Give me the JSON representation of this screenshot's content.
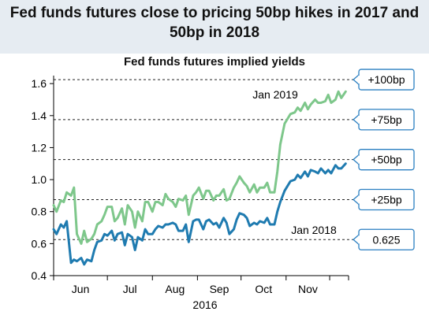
{
  "chart_data": {
    "type": "line",
    "title": "Fed funds futures close to pricing 50bp hikes in 2017 and 50bp in 2018",
    "subtitle": "Fed funds futures implied yields",
    "xlabel": "2016",
    "ylabel": "",
    "x_ticks": [
      "Jun",
      "Jul",
      "Aug",
      "Sep",
      "Oct",
      "Nov"
    ],
    "y_ticks": [
      "0.4",
      "0.6",
      "0.8",
      "1.0",
      "1.2",
      "1.4",
      "1.6"
    ],
    "ylim": [
      0.4,
      1.65
    ],
    "grid": false,
    "colors": {
      "jan2019": "#7ec78b",
      "jan2018": "#1f7bb0",
      "header": "#e6ecf2",
      "callout_border": "#2a7fc1"
    },
    "reference_lines": [
      {
        "value": 1.625,
        "label": "+100bp"
      },
      {
        "value": 1.375,
        "label": "+75bp"
      },
      {
        "value": 1.125,
        "label": "+50bp"
      },
      {
        "value": 0.875,
        "label": "+25bp"
      },
      {
        "value": 0.625,
        "label": "0.625"
      }
    ],
    "series": [
      {
        "name": "Jan 2019",
        "x": [
          "2016-05-25",
          "2016-05-27",
          "2016-05-30",
          "2016-06-01",
          "2016-06-03",
          "2016-06-06",
          "2016-06-08",
          "2016-06-10",
          "2016-06-13",
          "2016-06-15",
          "2016-06-17",
          "2016-06-20",
          "2016-06-22",
          "2016-06-24",
          "2016-06-27",
          "2016-06-29",
          "2016-07-01",
          "2016-07-04",
          "2016-07-06",
          "2016-07-08",
          "2016-07-11",
          "2016-07-13",
          "2016-07-15",
          "2016-07-18",
          "2016-07-20",
          "2016-07-22",
          "2016-07-25",
          "2016-07-27",
          "2016-07-29",
          "2016-08-01",
          "2016-08-03",
          "2016-08-05",
          "2016-08-08",
          "2016-08-10",
          "2016-08-12",
          "2016-08-15",
          "2016-08-17",
          "2016-08-19",
          "2016-08-22",
          "2016-08-24",
          "2016-08-26",
          "2016-08-29",
          "2016-08-31",
          "2016-09-02",
          "2016-09-05",
          "2016-09-07",
          "2016-09-09",
          "2016-09-12",
          "2016-09-14",
          "2016-09-16",
          "2016-09-19",
          "2016-09-21",
          "2016-09-23",
          "2016-09-26",
          "2016-09-28",
          "2016-09-30",
          "2016-10-03",
          "2016-10-05",
          "2016-10-07",
          "2016-10-10",
          "2016-10-12",
          "2016-10-14",
          "2016-10-17",
          "2016-10-19",
          "2016-10-21",
          "2016-10-24",
          "2016-10-26",
          "2016-10-28",
          "2016-10-31",
          "2016-11-02",
          "2016-11-04",
          "2016-11-07",
          "2016-11-09",
          "2016-11-11",
          "2016-11-14",
          "2016-11-16",
          "2016-11-18",
          "2016-11-21",
          "2016-11-23",
          "2016-11-25",
          "2016-11-28",
          "2016-11-30",
          "2016-12-02",
          "2016-12-05",
          "2016-12-07",
          "2016-12-09",
          "2016-12-12"
        ],
        "values": [
          0.84,
          0.8,
          0.87,
          0.86,
          0.92,
          0.9,
          0.95,
          0.66,
          0.6,
          0.68,
          0.61,
          0.63,
          0.66,
          0.72,
          0.74,
          0.78,
          0.83,
          0.83,
          0.74,
          0.76,
          0.82,
          0.72,
          0.84,
          0.8,
          0.7,
          0.8,
          0.74,
          0.86,
          0.86,
          0.8,
          0.86,
          0.86,
          0.84,
          0.91,
          0.88,
          0.86,
          0.83,
          0.88,
          0.87,
          0.9,
          0.78,
          0.9,
          0.92,
          0.95,
          0.88,
          0.93,
          0.93,
          0.87,
          0.9,
          0.9,
          0.94,
          0.87,
          0.88,
          0.95,
          0.98,
          1.02,
          0.98,
          0.96,
          0.92,
          0.97,
          0.92,
          0.95,
          0.95,
          0.98,
          0.92,
          0.92,
          1.05,
          1.22,
          1.35,
          1.38,
          1.41,
          1.42,
          1.45,
          1.43,
          1.48,
          1.44,
          1.47,
          1.5,
          1.48,
          1.48,
          1.49,
          1.53,
          1.48,
          1.5,
          1.55,
          1.51,
          1.55
        ]
      },
      {
        "name": "Jan 2018",
        "x": [
          "2016-05-25",
          "2016-05-27",
          "2016-05-30",
          "2016-06-01",
          "2016-06-03",
          "2016-06-06",
          "2016-06-08",
          "2016-06-10",
          "2016-06-13",
          "2016-06-15",
          "2016-06-17",
          "2016-06-20",
          "2016-06-22",
          "2016-06-24",
          "2016-06-27",
          "2016-06-29",
          "2016-07-01",
          "2016-07-04",
          "2016-07-06",
          "2016-07-08",
          "2016-07-11",
          "2016-07-13",
          "2016-07-15",
          "2016-07-18",
          "2016-07-20",
          "2016-07-22",
          "2016-07-25",
          "2016-07-27",
          "2016-07-29",
          "2016-08-01",
          "2016-08-03",
          "2016-08-05",
          "2016-08-08",
          "2016-08-10",
          "2016-08-12",
          "2016-08-15",
          "2016-08-17",
          "2016-08-19",
          "2016-08-22",
          "2016-08-24",
          "2016-08-26",
          "2016-08-29",
          "2016-08-31",
          "2016-09-02",
          "2016-09-05",
          "2016-09-07",
          "2016-09-09",
          "2016-09-12",
          "2016-09-14",
          "2016-09-16",
          "2016-09-19",
          "2016-09-21",
          "2016-09-23",
          "2016-09-26",
          "2016-09-28",
          "2016-09-30",
          "2016-10-03",
          "2016-10-05",
          "2016-10-07",
          "2016-10-10",
          "2016-10-12",
          "2016-10-14",
          "2016-10-17",
          "2016-10-19",
          "2016-10-21",
          "2016-10-24",
          "2016-10-26",
          "2016-10-28",
          "2016-10-31",
          "2016-11-02",
          "2016-11-04",
          "2016-11-07",
          "2016-11-09",
          "2016-11-11",
          "2016-11-14",
          "2016-11-16",
          "2016-11-18",
          "2016-11-21",
          "2016-11-23",
          "2016-11-25",
          "2016-11-28",
          "2016-11-30",
          "2016-12-02",
          "2016-12-05",
          "2016-12-07",
          "2016-12-09",
          "2016-12-12"
        ],
        "values": [
          0.69,
          0.66,
          0.72,
          0.7,
          0.74,
          0.48,
          0.5,
          0.49,
          0.51,
          0.47,
          0.5,
          0.49,
          0.56,
          0.61,
          0.62,
          0.66,
          0.65,
          0.68,
          0.62,
          0.66,
          0.67,
          0.59,
          0.66,
          0.64,
          0.56,
          0.64,
          0.62,
          0.69,
          0.66,
          0.66,
          0.69,
          0.71,
          0.7,
          0.72,
          0.72,
          0.73,
          0.72,
          0.68,
          0.68,
          0.72,
          0.61,
          0.74,
          0.75,
          0.75,
          0.69,
          0.74,
          0.75,
          0.72,
          0.73,
          0.7,
          0.76,
          0.73,
          0.66,
          0.69,
          0.75,
          0.79,
          0.78,
          0.76,
          0.71,
          0.73,
          0.72,
          0.74,
          0.73,
          0.76,
          0.72,
          0.72,
          0.8,
          0.86,
          0.93,
          0.96,
          0.99,
          1.0,
          1.03,
          1.01,
          1.05,
          1.02,
          1.06,
          1.05,
          1.04,
          1.07,
          1.04,
          1.06,
          1.04,
          1.09,
          1.07,
          1.07,
          1.1
        ]
      }
    ],
    "annotations": [
      {
        "series": "Jan 2019",
        "text": "Jan 2019"
      },
      {
        "series": "Jan 2018",
        "text": "Jan 2018"
      }
    ]
  }
}
